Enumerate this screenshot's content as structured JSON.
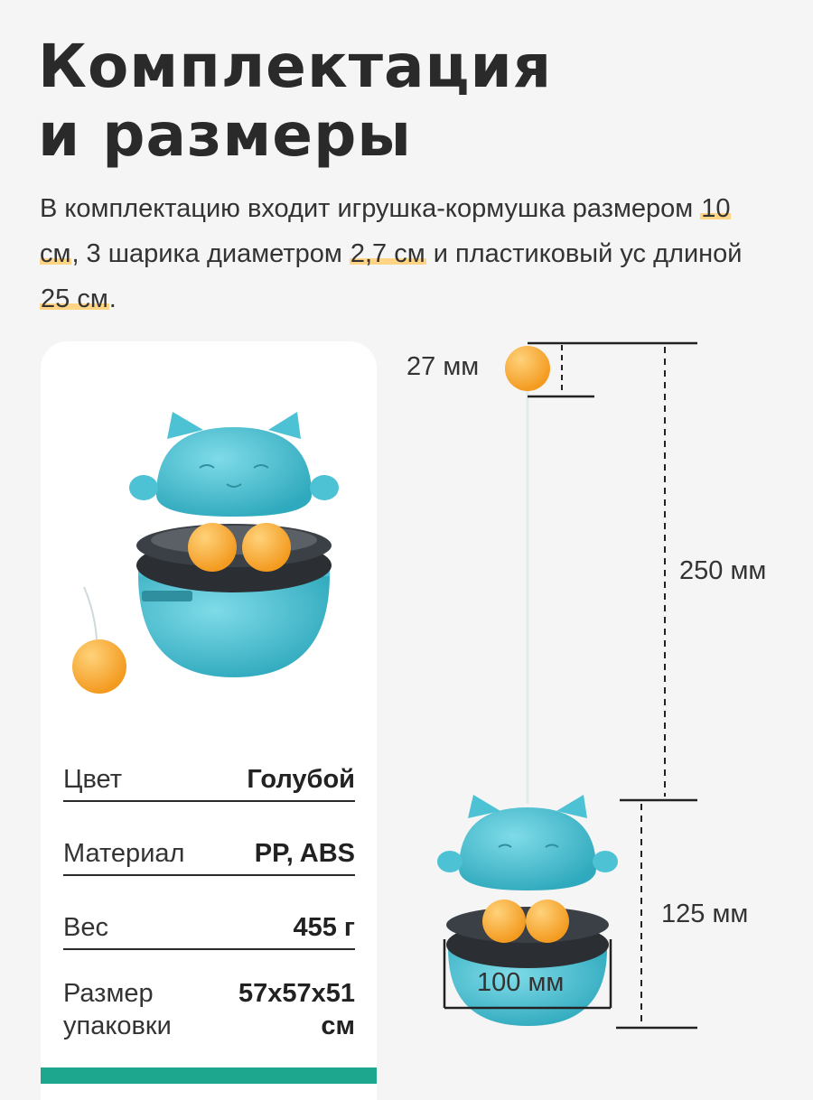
{
  "heading": {
    "line1": "Комплектация",
    "line2": "и размеры"
  },
  "intro": {
    "t1": "В комплектацию входит игрушка-кормушка размером ",
    "h1": "10 см",
    "t2": ", 3 шарика диаметром ",
    "h2": "2,7 см",
    "t3": " и пластиковый ус длиной ",
    "h3": "25 см",
    "t4": "."
  },
  "specs": [
    {
      "label": "Цвет",
      "value": "Голубой"
    },
    {
      "label": "Материал",
      "value": "PP, ABS"
    },
    {
      "label": "Вес",
      "value": "455 г"
    },
    {
      "label_line1": "Размер",
      "label_line2": "упаковки",
      "value_line1": "57х57х51",
      "value_line2": "см"
    }
  ],
  "dimensions": {
    "ball": "27 мм",
    "rod": "250 мм",
    "height": "125 мм",
    "width": "100 мм"
  },
  "colors": {
    "toy_blue": "#4cc2d4",
    "ball_orange": "#f9a632",
    "accent_bar": "#1ea78f",
    "highlight": "#ffd484"
  }
}
